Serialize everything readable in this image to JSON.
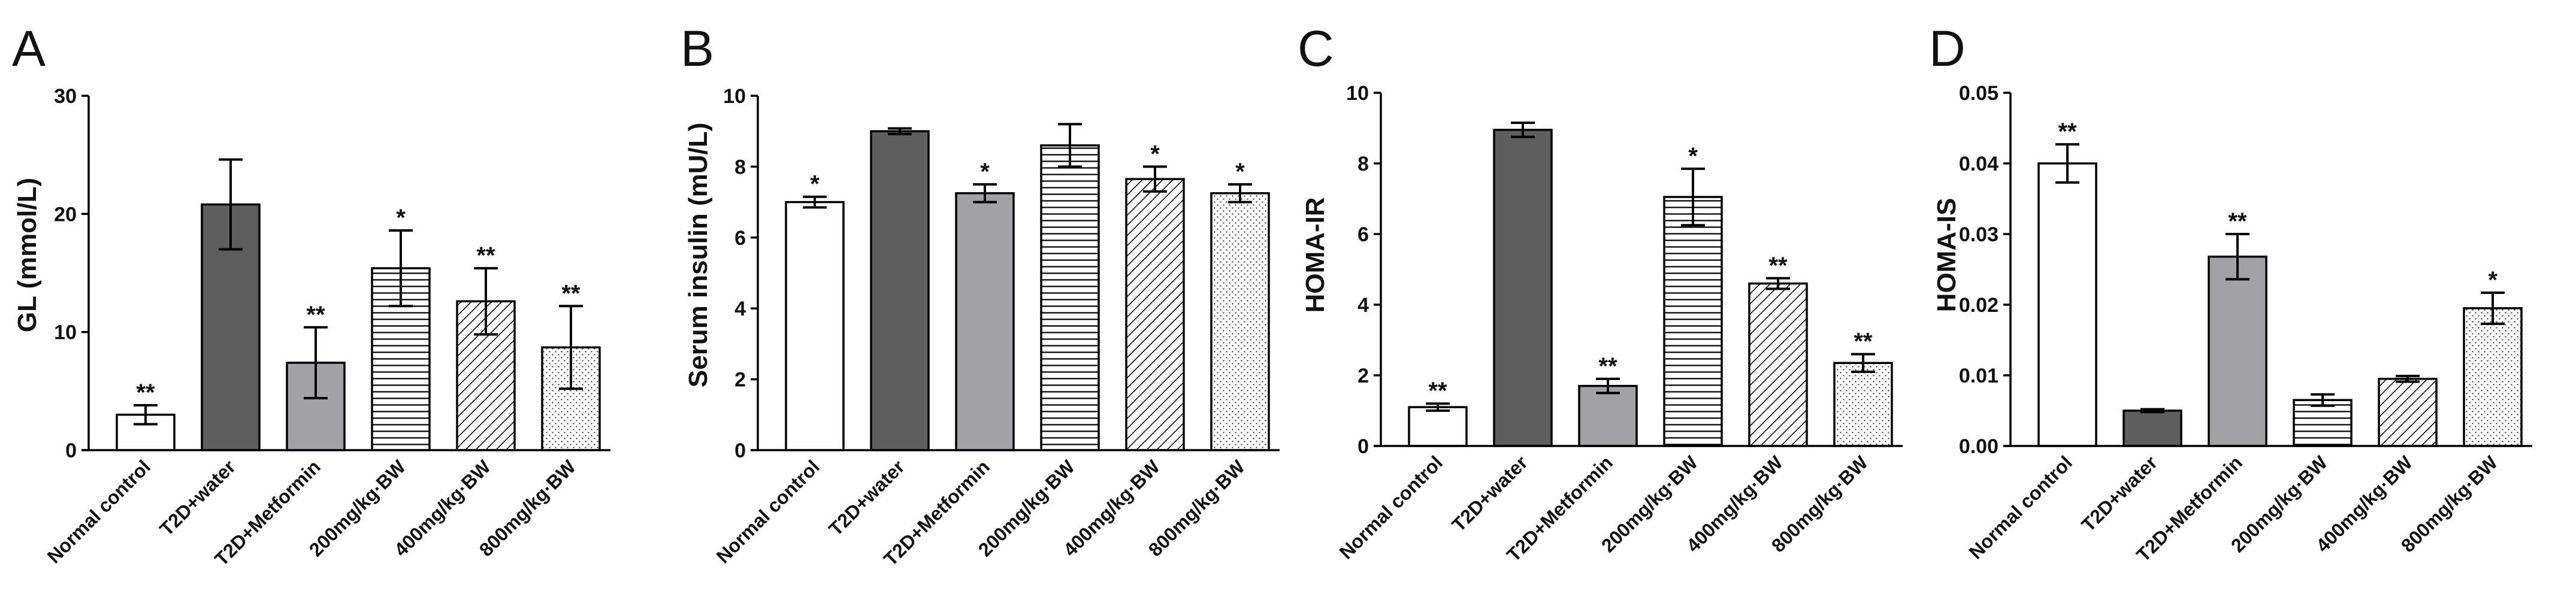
{
  "chart_data": [
    {
      "panel": "A",
      "type": "bar",
      "ylabel": "GL (mmol/L)",
      "ylim": [
        0,
        30
      ],
      "yticks": [
        "0",
        "10",
        "20",
        "30"
      ],
      "categories": [
        "Normal control",
        "T2D+water",
        "T2D+Metformin",
        "200mg/kg·BW",
        "400mg/kg·BW",
        "800mg/kg·BW"
      ],
      "values": [
        3.0,
        20.8,
        7.4,
        15.4,
        12.6,
        8.7
      ],
      "errors": [
        0.8,
        3.8,
        3.0,
        3.2,
        2.8,
        3.5
      ],
      "significance": [
        "**",
        "",
        "**",
        "*",
        "**",
        "**"
      ],
      "fills": [
        "white",
        "dark",
        "gray",
        "hlines",
        "diag",
        "dots"
      ]
    },
    {
      "panel": "B",
      "type": "bar",
      "ylabel": "Serum insulin (mU/L)",
      "ylim": [
        0,
        10
      ],
      "yticks": [
        "0",
        "2",
        "4",
        "6",
        "8",
        "10"
      ],
      "categories": [
        "Normal control",
        "T2D+water",
        "T2D+Metformin",
        "200mg/kg·BW",
        "400mg/kg·BW",
        "800mg/kg·BW"
      ],
      "values": [
        7.0,
        9.0,
        7.25,
        8.6,
        7.65,
        7.25
      ],
      "errors": [
        0.15,
        0.08,
        0.25,
        0.6,
        0.35,
        0.25
      ],
      "significance": [
        "*",
        "",
        "*",
        "",
        "*",
        "*"
      ],
      "fills": [
        "white",
        "dark",
        "gray",
        "hlines",
        "diag",
        "dots"
      ]
    },
    {
      "panel": "C",
      "type": "bar",
      "ylabel": "HOMA-IR",
      "ylim": [
        0,
        10
      ],
      "yticks": [
        "0",
        "2",
        "4",
        "6",
        "8",
        "10"
      ],
      "categories": [
        "Normal control",
        "T2D+water",
        "T2D+Metformin",
        "200mg/kg·BW",
        "400mg/kg·BW",
        "800mg/kg·BW"
      ],
      "values": [
        1.1,
        8.95,
        1.7,
        7.05,
        4.6,
        2.35
      ],
      "errors": [
        0.1,
        0.2,
        0.2,
        0.8,
        0.15,
        0.25
      ],
      "significance": [
        "**",
        "",
        "**",
        "*",
        "**",
        "**"
      ],
      "fills": [
        "white",
        "dark",
        "gray",
        "hlines",
        "diag",
        "dots"
      ]
    },
    {
      "panel": "D",
      "type": "bar",
      "ylabel": "HOMA-IS",
      "ylim": [
        0,
        0.05
      ],
      "yticks": [
        "0.00",
        "0.01",
        "0.02",
        "0.03",
        "0.04",
        "0.05"
      ],
      "categories": [
        "Normal control",
        "T2D+water",
        "T2D+Metformin",
        "200mg/kg·BW",
        "400mg/kg·BW",
        "800mg/kg·BW"
      ],
      "values": [
        0.04,
        0.005,
        0.0268,
        0.0065,
        0.0095,
        0.0195
      ],
      "errors": [
        0.0027,
        0.0002,
        0.0032,
        0.0008,
        0.0004,
        0.0022
      ],
      "significance": [
        "**",
        "",
        "**",
        "",
        "",
        "*"
      ],
      "fills": [
        "white",
        "dark",
        "gray",
        "hlines",
        "diag",
        "dots"
      ]
    }
  ],
  "colors": {
    "dark": "#5e5e5e",
    "gray": "#a2a2a6",
    "white": "#ffffff",
    "stroke": "#000000"
  }
}
